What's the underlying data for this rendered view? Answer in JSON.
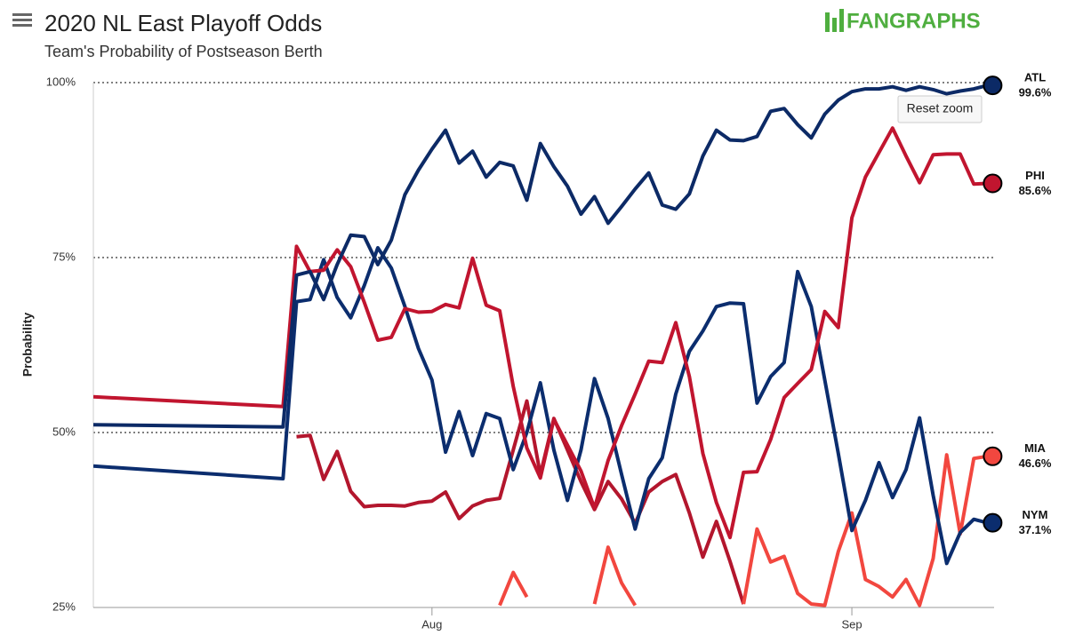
{
  "chart_data": {
    "type": "line",
    "title": "2020 NL East Playoff Odds",
    "subtitle": "Team's Probability of Postseason Berth",
    "logo": "FANGRAPHS",
    "reset_button": "Reset zoom",
    "y_label": "Probability",
    "x": [
      189,
      203,
      204,
      205,
      206,
      207,
      208,
      209,
      210,
      211,
      212,
      213,
      214,
      215,
      216,
      217,
      218,
      219,
      220,
      221,
      222,
      223,
      224,
      225,
      226,
      227,
      228,
      229,
      230,
      231,
      232,
      233,
      234,
      235,
      236,
      237,
      238,
      239,
      240,
      241,
      242,
      243,
      244,
      245,
      246,
      247,
      248,
      249,
      250,
      251,
      252,
      253,
      254,
      255
    ],
    "xlim": [
      189,
      255.5
    ],
    "xticks": [
      {
        "value": 214,
        "label": "Aug"
      },
      {
        "value": 245,
        "label": "Sep"
      }
    ],
    "ylim": [
      25,
      100
    ],
    "yticks": [
      {
        "value": 25,
        "label": "25%"
      },
      {
        "value": 50,
        "label": "50%"
      },
      {
        "value": 75,
        "label": "75%"
      },
      {
        "value": 100,
        "label": "100%"
      }
    ],
    "grid": true,
    "series": [
      {
        "color": "#b3162d",
        "values": [
          null,
          null,
          49.4,
          49.6,
          43.3,
          47.3,
          41.6,
          39.4,
          39.6,
          39.6,
          39.5,
          40,
          40.2,
          41.5,
          37.7,
          39.5,
          40.3,
          40.6,
          47.5,
          54.5,
          44,
          52,
          47.5,
          43,
          39,
          43,
          40.5,
          37,
          41.5,
          43,
          44,
          38.5,
          32.2,
          37.3,
          31.6,
          25.5,
          null,
          null,
          null,
          null,
          null,
          null,
          null,
          null,
          null,
          null,
          null,
          null,
          null,
          null,
          null,
          null,
          null,
          null
        ]
      },
      {
        "name": "MIA",
        "color": "#f2473f",
        "values": [
          null,
          null,
          null,
          null,
          null,
          null,
          null,
          null,
          null,
          null,
          null,
          null,
          null,
          null,
          null,
          null,
          null,
          25.3,
          30,
          26.5,
          null,
          null,
          null,
          null,
          25.5,
          33.6,
          28.5,
          25.3,
          null,
          null,
          null,
          null,
          null,
          null,
          null,
          25.5,
          36.2,
          31.5,
          32.3,
          27,
          25.5,
          25.3,
          33,
          38.5,
          29,
          28,
          26.5,
          29,
          25.3,
          32,
          46.8,
          35.5,
          46.3,
          46.6
        ],
        "value_labels": [
          null,
          null,
          null,
          null,
          null,
          null,
          null,
          null,
          null,
          null,
          null,
          null,
          null,
          null,
          null,
          null,
          null,
          null,
          null,
          null,
          null,
          null,
          null,
          null,
          null,
          null,
          null,
          null,
          null,
          null,
          null,
          null,
          null,
          null,
          null,
          null,
          null,
          null,
          null,
          null,
          null,
          null,
          null,
          null,
          null,
          null,
          null,
          null,
          null,
          null,
          null,
          null,
          null,
          "46.6%"
        ]
      },
      {
        "name": "NYM",
        "color": "#0b2d6e",
        "values": [
          45.2,
          43.4,
          68.7,
          69,
          74.7,
          69.3,
          66.4,
          71,
          76.4,
          73.5,
          68,
          62,
          57.5,
          47.2,
          53,
          46.7,
          52.7,
          52,
          44.7,
          50,
          57.1,
          47.5,
          40.3,
          47.5,
          57.7,
          52,
          44,
          36.2,
          43.4,
          46.4,
          55.5,
          61.6,
          64.5,
          68,
          68.5,
          68.4,
          54.2,
          58,
          60,
          73,
          68,
          57.5,
          47,
          36,
          40.3,
          45.7,
          40.7,
          44.7,
          52.1,
          41,
          31.3,
          35.7,
          37.6,
          37.1
        ],
        "value_labels": [
          null,
          null,
          null,
          null,
          null,
          null,
          null,
          null,
          null,
          null,
          null,
          null,
          null,
          null,
          null,
          null,
          null,
          null,
          null,
          null,
          null,
          null,
          null,
          null,
          null,
          null,
          null,
          null,
          null,
          null,
          null,
          null,
          null,
          null,
          null,
          null,
          null,
          null,
          null,
          null,
          null,
          null,
          null,
          null,
          null,
          null,
          null,
          null,
          null,
          null,
          null,
          null,
          null,
          "37.1%"
        ]
      },
      {
        "name": "PHI",
        "color": "#c1152f",
        "values": [
          55.1,
          53.7,
          76.6,
          73,
          73.2,
          76.1,
          73.7,
          68.6,
          63.2,
          63.6,
          67.7,
          67.2,
          67.3,
          68.3,
          67.8,
          74.9,
          68.2,
          67.4,
          56.6,
          47.8,
          43.5,
          51.9,
          48.2,
          44.5,
          39.2,
          46,
          51,
          55.5,
          60.2,
          60,
          65.7,
          58,
          47,
          40,
          35,
          44.3,
          44.4,
          49,
          55,
          57,
          59,
          67.3,
          65,
          80.7,
          86.5,
          90,
          93.5,
          89.5,
          85.7,
          89.7,
          89.8,
          89.8,
          85.5,
          85.6
        ],
        "value_labels": [
          null,
          null,
          null,
          null,
          null,
          null,
          null,
          null,
          null,
          null,
          null,
          null,
          null,
          null,
          null,
          null,
          null,
          null,
          null,
          null,
          null,
          null,
          null,
          null,
          null,
          null,
          null,
          null,
          null,
          null,
          null,
          null,
          null,
          null,
          null,
          null,
          null,
          null,
          null,
          null,
          null,
          null,
          null,
          null,
          null,
          null,
          null,
          null,
          null,
          null,
          null,
          null,
          null,
          "85.6%"
        ]
      },
      {
        "name": "ATL",
        "color": "#0c2a66",
        "values": [
          51.1,
          50.8,
          72.5,
          73,
          69,
          74,
          78.2,
          78,
          74,
          77.5,
          84,
          87.5,
          90.5,
          93.2,
          88.5,
          90.2,
          86.5,
          88.6,
          88.1,
          83.2,
          91.3,
          88,
          85.2,
          81.2,
          83.7,
          79.9,
          82.3,
          84.8,
          87.1,
          82.5,
          81.9,
          84.1,
          89.5,
          93.2,
          91.8,
          91.7,
          92.3,
          95.9,
          96.3,
          94,
          92.1,
          95.5,
          97.5,
          98.7,
          99.1,
          99.1,
          99.4,
          98.9,
          99.4,
          99,
          98.4,
          98.8,
          99.1,
          99.6
        ],
        "value_labels": [
          null,
          null,
          null,
          null,
          null,
          null,
          null,
          null,
          null,
          null,
          null,
          null,
          null,
          null,
          null,
          null,
          null,
          null,
          null,
          null,
          null,
          null,
          null,
          null,
          null,
          null,
          null,
          null,
          null,
          null,
          null,
          null,
          null,
          null,
          null,
          null,
          null,
          null,
          null,
          null,
          null,
          null,
          null,
          null,
          null,
          null,
          null,
          null,
          null,
          null,
          null,
          null,
          null,
          "99.6%"
        ]
      }
    ]
  }
}
